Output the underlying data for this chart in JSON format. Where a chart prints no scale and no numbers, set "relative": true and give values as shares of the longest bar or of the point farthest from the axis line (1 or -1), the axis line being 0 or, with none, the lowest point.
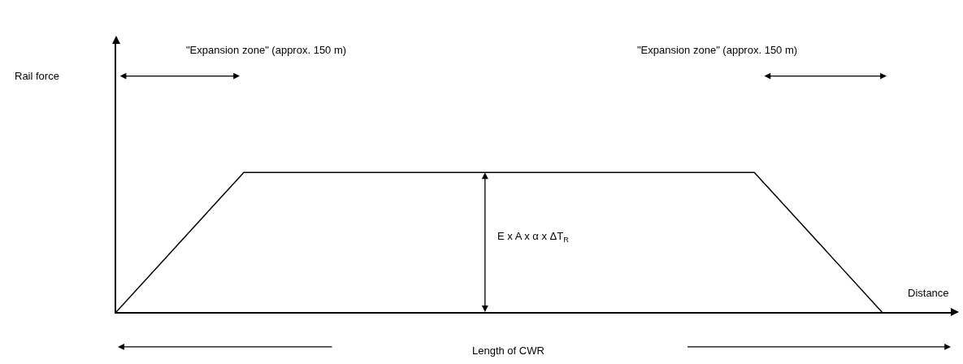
{
  "chart_data": {
    "type": "line",
    "relative": true,
    "categories": [
      null,
      null,
      null,
      null,
      null,
      null,
      null
    ],
    "values": [
      0,
      1,
      1,
      1,
      1,
      1,
      0
    ],
    "color": "#000000",
    "marker": "none",
    "line_style": "solid",
    "grid": false,
    "legend": false,
    "annotations": [
      "\"Expansion zone\" (approx. 150 m)",
      "\"Expansion zone\" (approx. 150 m)",
      "E x A x α x ΔT$_{R}$",
      "Length of CWR",
      "Rail force",
      "Distance"
    ]
  }
}
